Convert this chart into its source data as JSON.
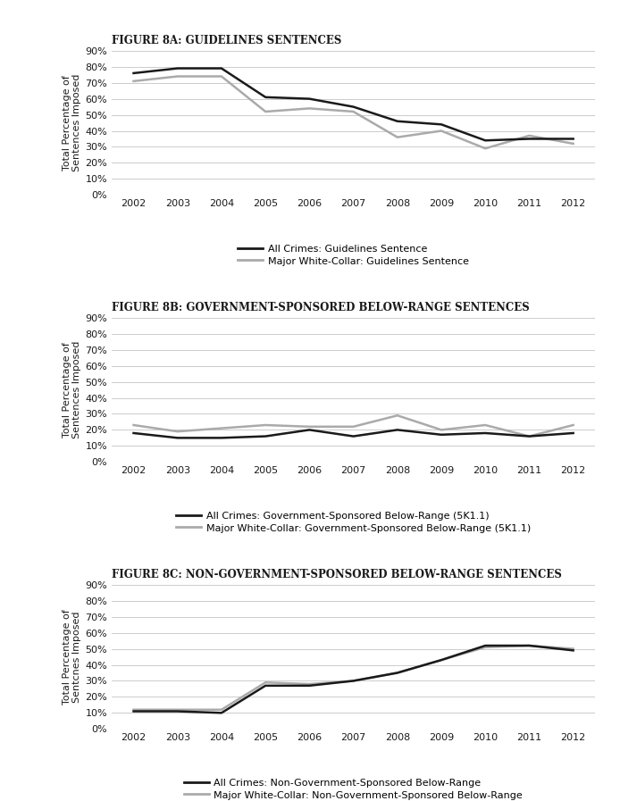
{
  "years": [
    2002,
    2003,
    2004,
    2005,
    2006,
    2007,
    2008,
    2009,
    2010,
    2011,
    2012
  ],
  "fig8a": {
    "title": "Figure 8A: Guidelines Sentences",
    "all_crimes": [
      76,
      79,
      79,
      61,
      60,
      55,
      46,
      44,
      34,
      35,
      35
    ],
    "white_collar": [
      71,
      74,
      74,
      52,
      54,
      52,
      36,
      40,
      29,
      37,
      32
    ],
    "legend1": "All Crimes: Guidelines Sentence",
    "legend2": "Major White-Collar: Guidelines Sentence"
  },
  "fig8b": {
    "title": "Figure 8B: Government-Sponsored Below-Range Sentences",
    "all_crimes": [
      18,
      15,
      15,
      16,
      20,
      16,
      20,
      17,
      18,
      16,
      18
    ],
    "white_collar": [
      23,
      19,
      21,
      23,
      22,
      22,
      29,
      20,
      23,
      16,
      23
    ],
    "legend1": "All Crimes: Government-Sponsored Below-Range (5K1.1)",
    "legend2": "Major White-Collar: Government-Sponsored Below-Range (5K1.1)"
  },
  "fig8c": {
    "title": "Figure 8C: Non-Government-Sponsored Below-Range Sentences",
    "all_crimes": [
      11,
      11,
      10,
      27,
      27,
      30,
      35,
      43,
      52,
      52,
      49
    ],
    "white_collar": [
      12,
      12,
      12,
      29,
      28,
      30,
      35,
      43,
      51,
      52,
      50
    ],
    "legend1": "All Crimes: Non-Government-Sponsored Below-Range",
    "legend2": "Major White-Collar: Non-Government-Sponsored Below-Range"
  },
  "ylabel_ab": "Total Percentage of\nSentences Imposed",
  "ylabel_c": "Total Percentage of\nSentcnes Imposed",
  "yticks": [
    0,
    10,
    20,
    30,
    40,
    50,
    60,
    70,
    80,
    90
  ],
  "color_black": "#1a1a1a",
  "color_gray": "#aaaaaa",
  "bg_color": "#ffffff"
}
